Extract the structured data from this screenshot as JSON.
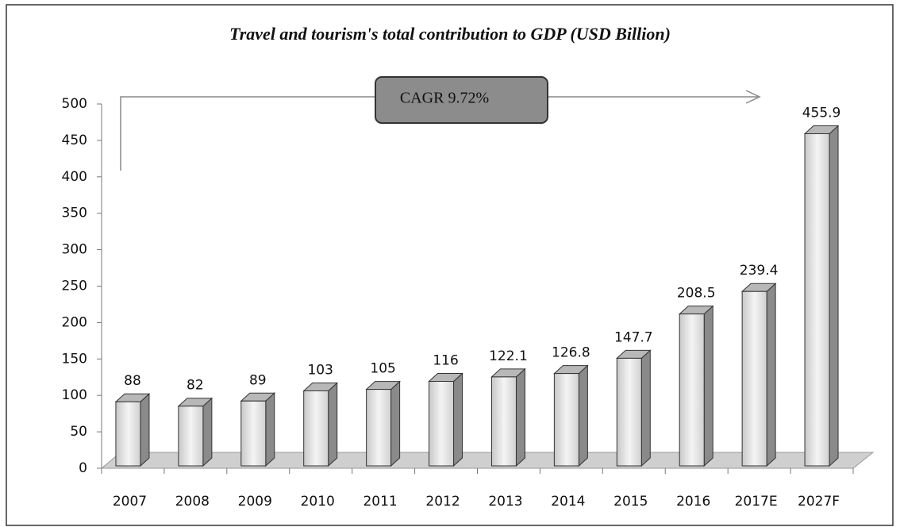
{
  "chart_data": {
    "type": "bar3d",
    "title": "Travel and tourism's total contribution to GDP (USD Billion)",
    "annotation": "CAGR  9.72%",
    "categories": [
      "2007",
      "2008",
      "2009",
      "2010",
      "2011",
      "2012",
      "2013",
      "2014",
      "2015",
      "2016",
      "2017E",
      "2027F"
    ],
    "values": [
      88,
      82,
      89,
      103,
      105,
      116,
      122.1,
      126.8,
      147.7,
      208.5,
      239.4,
      455.9
    ],
    "ylim": [
      0,
      500
    ],
    "yticks": [
      0,
      50,
      100,
      150,
      200,
      250,
      300,
      350,
      400,
      450,
      500
    ]
  }
}
